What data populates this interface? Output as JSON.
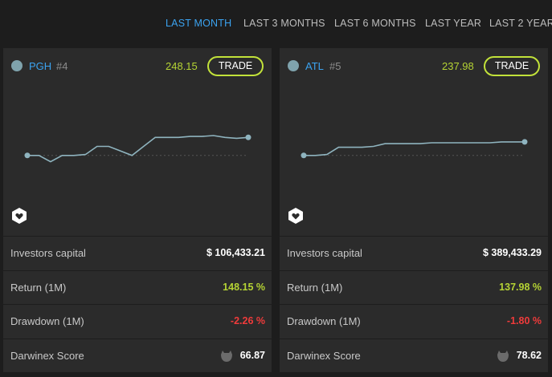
{
  "tabs": [
    {
      "label": "LAST MONTH",
      "active": true
    },
    {
      "label": "LAST 3 MONTHS",
      "active": false
    },
    {
      "label": "LAST 6 MONTHS",
      "active": false
    },
    {
      "label": "LAST YEAR",
      "active": false
    },
    {
      "label": "LAST 2 YEARS",
      "active": false
    }
  ],
  "colors": {
    "accent_blue": "#3ba3f0",
    "positive": "#b5d334",
    "negative": "#ef3b3b",
    "line": "#8fb4bf"
  },
  "cards": [
    {
      "ticker": "PGH",
      "rank": "#4",
      "price": "248.15",
      "trade_label": "TRADE",
      "shield_icon": "shield-heart-icon",
      "sparkline": [
        100,
        100,
        99.3,
        100,
        100,
        100.1,
        101,
        101,
        100.5,
        100,
        101,
        102,
        102,
        102,
        102.1,
        102.1,
        102.2,
        102,
        101.9,
        102
      ],
      "metrics": [
        {
          "label": "Investors capital",
          "value": "$ 106,433.21",
          "tone": "neutral"
        },
        {
          "label": "Return (1M)",
          "value": "148.15 %",
          "tone": "positive"
        },
        {
          "label": "Drawdown (1M)",
          "value": "-2.26 %",
          "tone": "negative"
        },
        {
          "label": "Darwinex Score",
          "value": "66.87",
          "tone": "neutral",
          "icon": "score-badge-icon"
        }
      ]
    },
    {
      "ticker": "ATL",
      "rank": "#5",
      "price": "237.98",
      "trade_label": "TRADE",
      "shield_icon": "shield-heart-icon",
      "sparkline": [
        100,
        100,
        100.1,
        100.9,
        100.9,
        100.9,
        101,
        101.3,
        101.3,
        101.3,
        101.3,
        101.4,
        101.4,
        101.4,
        101.4,
        101.4,
        101.4,
        101.5,
        101.5,
        101.5
      ],
      "metrics": [
        {
          "label": "Investors capital",
          "value": "$ 389,433.29",
          "tone": "neutral"
        },
        {
          "label": "Return (1M)",
          "value": "137.98 %",
          "tone": "positive"
        },
        {
          "label": "Drawdown (1M)",
          "value": "-1.80 %",
          "tone": "negative"
        },
        {
          "label": "Darwinex Score",
          "value": "78.62",
          "tone": "neutral",
          "icon": "score-badge-icon"
        }
      ]
    }
  ]
}
